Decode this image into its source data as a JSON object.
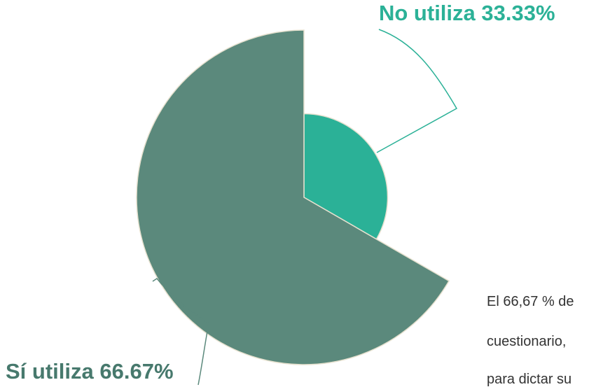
{
  "chart_data": {
    "type": "pie",
    "categories": [
      "No utiliza",
      "Sí utiliza"
    ],
    "values": [
      33.33,
      66.67
    ],
    "value_labels": [
      "33.33%",
      "66.67%"
    ],
    "colors": [
      "#2bb197",
      "#5b897c"
    ],
    "label_colors": [
      "#2bb197",
      "#47796d"
    ],
    "rose": true
  },
  "paragraph": {
    "lines": [
      "El 66,67 % de",
      "cuestionario,",
      "para dictar su"
    ]
  }
}
